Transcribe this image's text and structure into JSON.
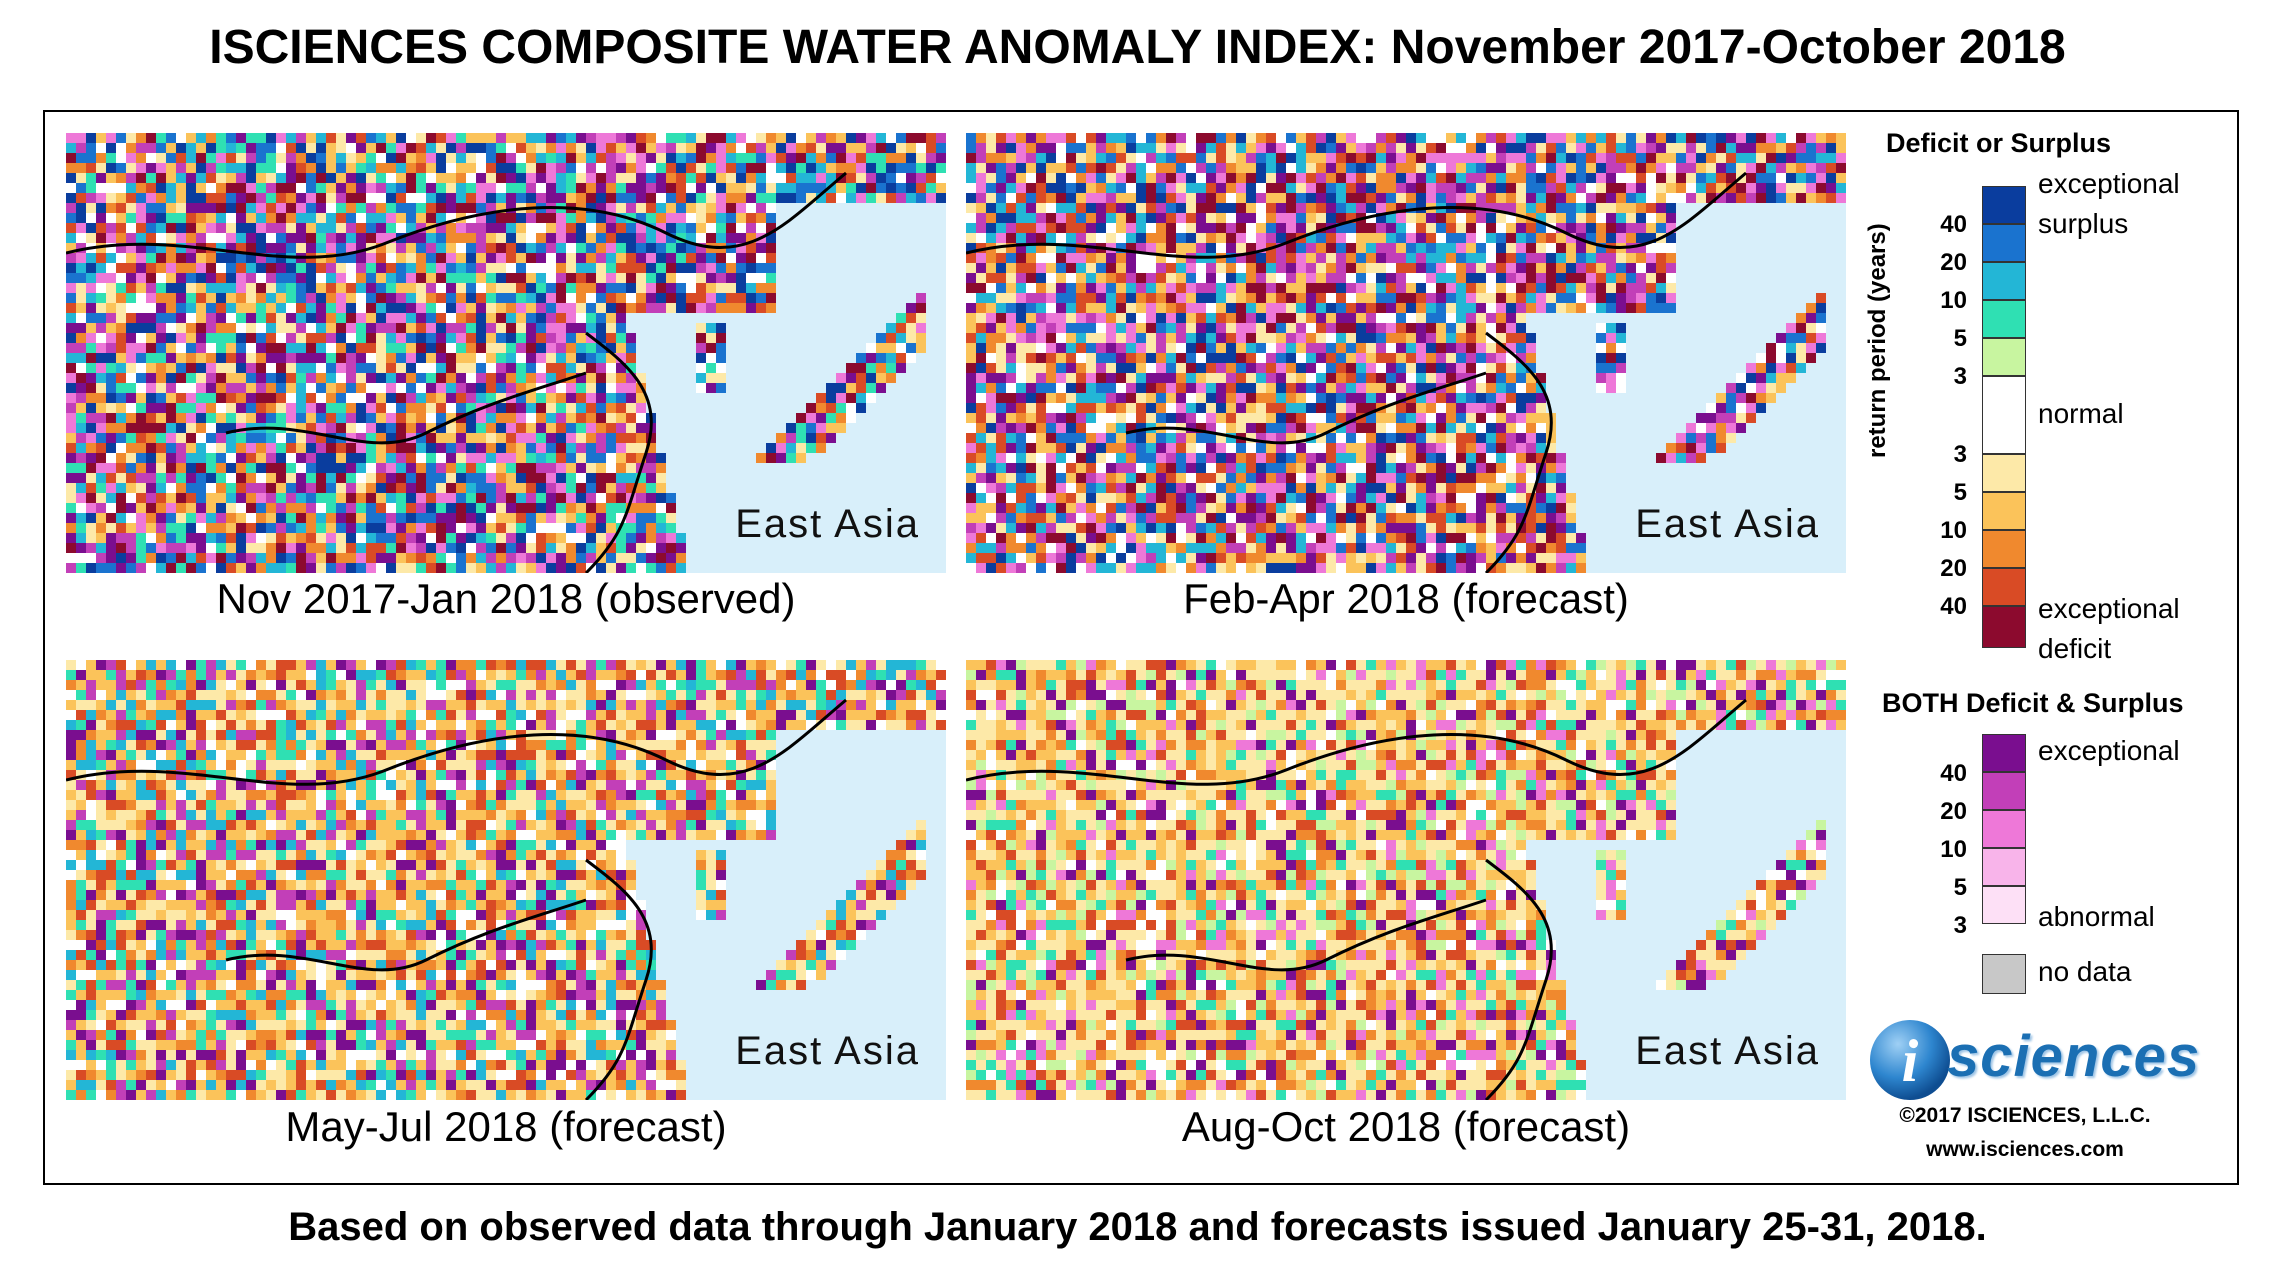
{
  "title": "ISCIENCES COMPOSITE WATER ANOMALY INDEX: November 2017-October 2018",
  "panels": [
    {
      "region": "East Asia",
      "caption": "Nov 2017-Jan 2018 (observed)"
    },
    {
      "region": "East Asia",
      "caption": "Feb-Apr 2018 (forecast)"
    },
    {
      "region": "East Asia",
      "caption": "May-Jul 2018 (forecast)"
    },
    {
      "region": "East Asia",
      "caption": "Aug-Oct 2018 (forecast)"
    }
  ],
  "legend": {
    "section1_title": "Deficit or Surplus",
    "axis_label": "return period (years)",
    "surplus_colors": [
      "#0a3d9e",
      "#1a73cf",
      "#23b6d6",
      "#2fe0b3",
      "#c8f5a0"
    ],
    "normal_color": "#ffffff",
    "deficit_colors": [
      "#fde9a8",
      "#fbc35a",
      "#f0892e",
      "#d94b25",
      "#8c0a2e"
    ],
    "surplus_ticks": [
      "40",
      "20",
      "10",
      "5",
      "3"
    ],
    "deficit_ticks": [
      "3",
      "5",
      "10",
      "20",
      "40"
    ],
    "labels": {
      "exceptional_surplus_1": "exceptional",
      "exceptional_surplus_2": "surplus",
      "normal": "normal",
      "exceptional_deficit_1": "exceptional",
      "exceptional_deficit_2": "deficit"
    },
    "section2_title": "BOTH Deficit & Surplus",
    "both_colors": [
      "#7a0e8f",
      "#c23fb8",
      "#ee78d8",
      "#f8b4ea",
      "#fde0f6"
    ],
    "both_ticks": [
      "40",
      "20",
      "10",
      "5",
      "3"
    ],
    "both_label_top": "exceptional",
    "both_label_bottom": "abnormal",
    "nodata_color": "#c8c8c8",
    "nodata_label": "no data"
  },
  "logo": {
    "text": "sciences",
    "letter": "i"
  },
  "copyright": "©2017 ISCIENCES, L.L.C.",
  "website": "www.isciences.com",
  "footer": "Based on observed data through January 2018 and forecasts issued January 25-31, 2018."
}
